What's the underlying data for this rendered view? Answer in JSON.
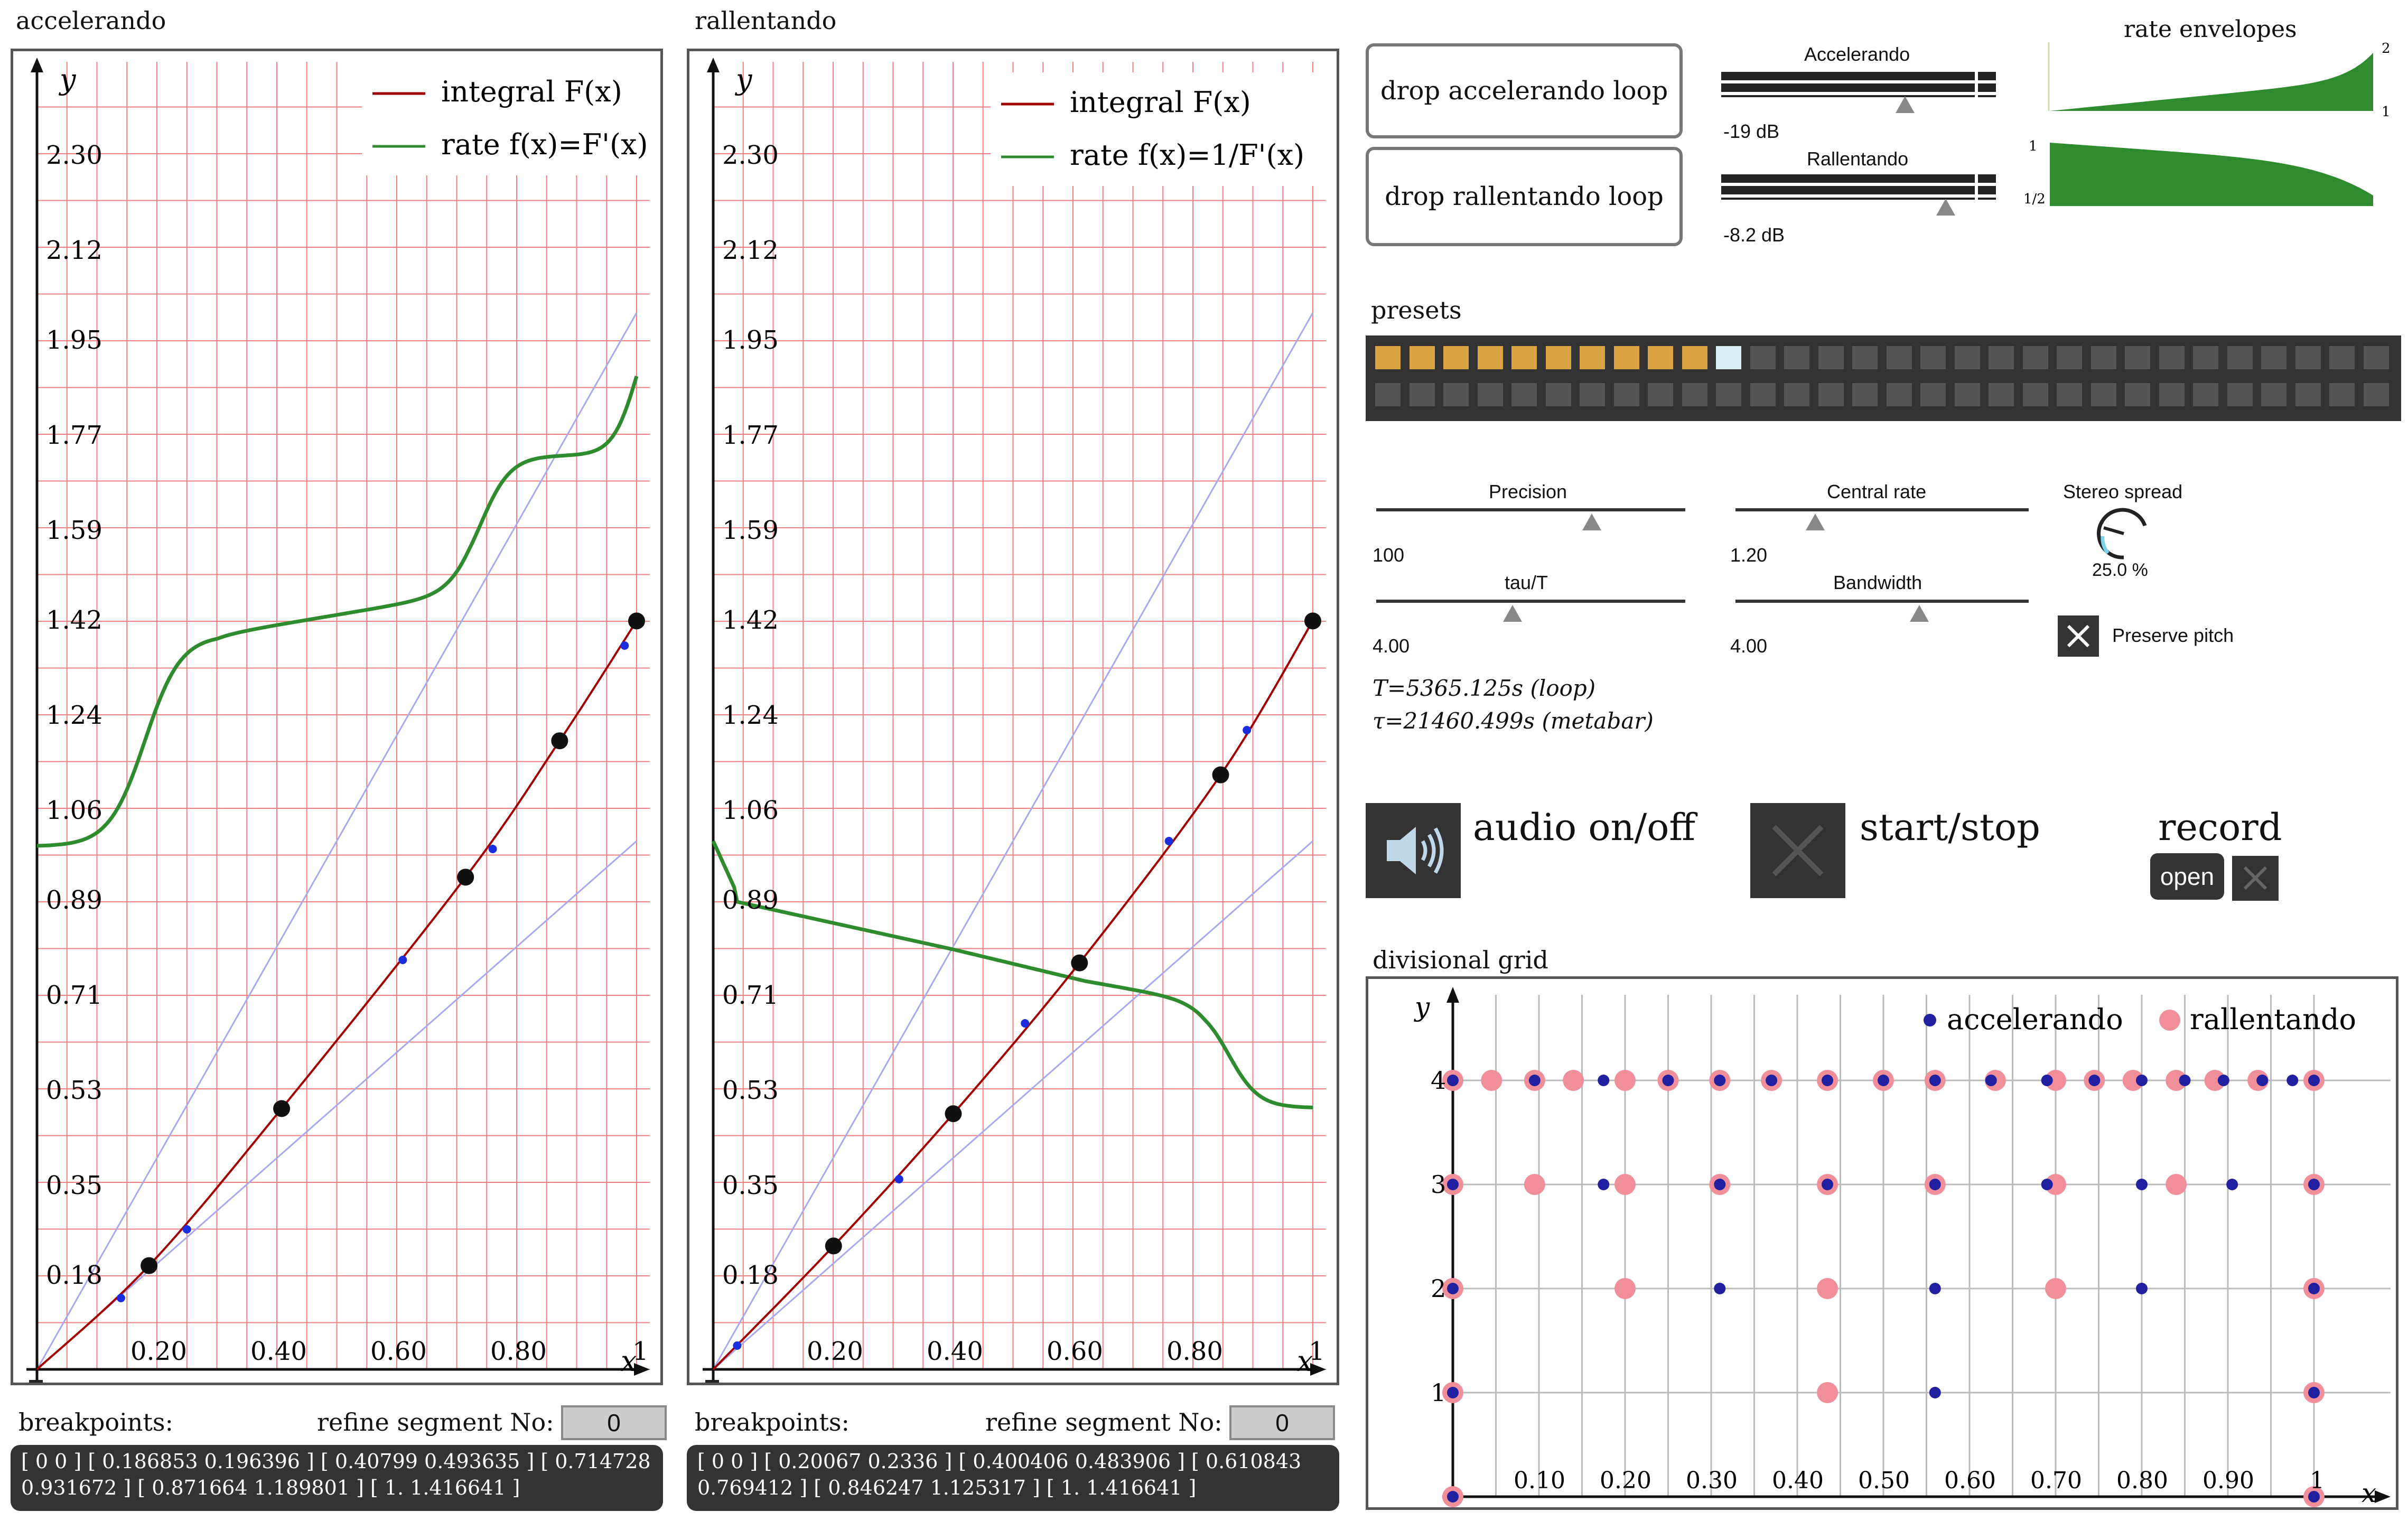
{
  "accel_panel": {
    "title": "accelerando",
    "y_label": "y",
    "x_label": "x",
    "legend": {
      "integral": "integral F(x)",
      "rate": "rate f(x)=F'(x)"
    },
    "y_ticks": [
      "2.30",
      "2.12",
      "1.95",
      "1.77",
      "1.59",
      "1.42",
      "1.24",
      "1.06",
      "0.89",
      "0.71",
      "0.53",
      "0.35",
      "0.18"
    ],
    "x_ticks": [
      "0.20",
      "0.40",
      "0.60",
      "0.80",
      "1"
    ],
    "breakpoints_label": "breakpoints:",
    "refine_label": "refine segment No:",
    "refine_value": "0",
    "breakpoints_text": "[ 0 0 ] [ 0.186853 0.196396 ] [ 0.40799 0.493635 ] [ 0.714728 0.931672 ] [ 0.871664 1.189801 ] [ 1. 1.416641 ]",
    "colors": {
      "integral": "#a00000",
      "rate": "#2e8b2e",
      "grid": "#f08080",
      "guide": "#9999ee"
    }
  },
  "rall_panel": {
    "title": "rallentando",
    "y_label": "y",
    "x_label": "x",
    "legend": {
      "integral": "integral F(x)",
      "rate": "rate f(x)=1/F'(x)"
    },
    "y_ticks": [
      "2.30",
      "2.12",
      "1.95",
      "1.77",
      "1.59",
      "1.42",
      "1.24",
      "1.06",
      "0.89",
      "0.71",
      "0.53",
      "0.35",
      "0.18"
    ],
    "x_ticks": [
      "0.20",
      "0.40",
      "0.60",
      "0.80",
      "1"
    ],
    "breakpoints_label": "breakpoints:",
    "refine_label": "refine segment No:",
    "refine_value": "0",
    "breakpoints_text": "[ 0 0 ] [ 0.20067 0.2336 ] [ 0.400406 0.483906 ] [ 0.610843 0.769412 ] [ 0.846247 1.125317 ] [ 1. 1.416641 ]"
  },
  "loops": {
    "accel_button": "drop accelerando loop",
    "rall_button": "drop rallentando loop",
    "accel_label": "Accelerando",
    "accel_db": "-19 dB",
    "rall_label": "Rallentando",
    "rall_db": "-8.2 dB"
  },
  "envelopes": {
    "title": "rate envelopes",
    "accel_max": "2",
    "accel_min": "1",
    "rall_max": "1",
    "rall_min": "1/2",
    "color": "#2e8b2e"
  },
  "presets": {
    "title": "presets",
    "active_count": 10,
    "selected_index": 10,
    "active_color": "#d9a441",
    "selected_color": "#d8eef0",
    "empty_color": "#555555"
  },
  "params": {
    "precision_label": "Precision",
    "precision_value": "100",
    "tau_label": "tau/T",
    "tau_value": "4.00",
    "central_label": "Central rate",
    "central_value": "1.20",
    "bandwidth_label": "Bandwidth",
    "bandwidth_value": "4.00",
    "stereo_label": "Stereo spread",
    "stereo_value": "25.0 %",
    "preserve_label": "Preserve pitch",
    "t_info": "T=5365.125s (loop)",
    "tau_info": "τ=21460.499s (metabar)"
  },
  "transport": {
    "audio_label": "audio on/off",
    "start_label": "start/stop",
    "record_label": "record",
    "open_label": "open"
  },
  "grid_panel": {
    "title": "divisional grid",
    "y_label": "y",
    "x_label": "x",
    "legend_accel": "accelerando",
    "legend_rall": "rallentando",
    "y_ticks": [
      "4",
      "3",
      "2",
      "1"
    ],
    "x_ticks": [
      "0.10",
      "0.20",
      "0.30",
      "0.40",
      "0.50",
      "0.60",
      "0.70",
      "0.80",
      "0.90",
      "1"
    ],
    "accel_color": "#2020a0",
    "rall_color": "#f08f9a"
  }
}
